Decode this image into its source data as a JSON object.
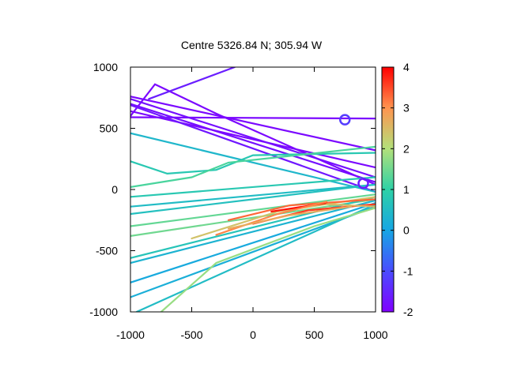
{
  "chart_data": {
    "type": "scatter",
    "title": "Centre 5326.84 N; 305.94  W",
    "xlabel": "",
    "ylabel": "",
    "xlim": [
      -1000,
      1000
    ],
    "ylim": [
      -1000,
      1000
    ],
    "x_ticks": [
      "-1000",
      "-500",
      "0",
      "500",
      "1000"
    ],
    "y_ticks": [
      "1000",
      "500",
      "0",
      "-500",
      "-1000"
    ],
    "colorbar": {
      "range": [
        -2,
        4
      ],
      "ticks": [
        "4",
        "3",
        "2",
        "1",
        "0",
        "-1",
        "-2"
      ],
      "colormap": "rainbow"
    },
    "grid": false,
    "tracks": [
      {
        "x": [
          -1000,
          1000
        ],
        "y": [
          590,
          580
        ],
        "value": -1.9
      },
      {
        "x": [
          -1000,
          1000
        ],
        "y": [
          760,
          320
        ],
        "value": -1.9
      },
      {
        "x": [
          -1000,
          1000
        ],
        "y": [
          700,
          60
        ],
        "value": -1.8
      },
      {
        "x": [
          -1000,
          1000
        ],
        "y": [
          640,
          180
        ],
        "value": -1.9
      },
      {
        "x": [
          -1000,
          -800,
          -300,
          1000
        ],
        "y": [
          600,
          860,
          620,
          40
        ],
        "value": -1.9
      },
      {
        "x": [
          -1000,
          1000
        ],
        "y": [
          740,
          100
        ],
        "value": -1.8
      },
      {
        "x": [
          -1000,
          1000
        ],
        "y": [
          690,
          -20
        ],
        "value": -1.7
      },
      {
        "x": [
          -850,
          -150
        ],
        "y": [
          740,
          1000
        ],
        "value": -1.6
      },
      {
        "x": [
          -1000,
          1000
        ],
        "y": [
          460,
          -20
        ],
        "value": 0.4
      },
      {
        "x": [
          -1000,
          -700,
          -300,
          0,
          1000
        ],
        "y": [
          230,
          130,
          160,
          280,
          300
        ],
        "value": 0.8
      },
      {
        "x": [
          -1000,
          -500,
          -200,
          1000
        ],
        "y": [
          20,
          100,
          220,
          350
        ],
        "value": 1.2
      },
      {
        "x": [
          -1000,
          1000
        ],
        "y": [
          -60,
          100
        ],
        "value": 0.8
      },
      {
        "x": [
          -1000,
          1000
        ],
        "y": [
          -140,
          40
        ],
        "value": 0.5
      },
      {
        "x": [
          -1000,
          1000
        ],
        "y": [
          -200,
          40
        ],
        "value": 0.6
      },
      {
        "x": [
          -1000,
          1000
        ],
        "y": [
          -300,
          -40
        ],
        "value": 1.4
      },
      {
        "x": [
          -1000,
          1000
        ],
        "y": [
          -380,
          -80
        ],
        "value": 1.5
      },
      {
        "x": [
          -1000,
          1000
        ],
        "y": [
          -560,
          -60
        ],
        "value": 0.7
      },
      {
        "x": [
          -1000,
          1000
        ],
        "y": [
          -600,
          -90
        ],
        "value": 0.3
      },
      {
        "x": [
          -1000,
          1000
        ],
        "y": [
          -760,
          -110
        ],
        "value": 0.1
      },
      {
        "x": [
          -1000,
          1000
        ],
        "y": [
          -880,
          -140
        ],
        "value": 0.2
      },
      {
        "x": [
          -950,
          1000
        ],
        "y": [
          -1000,
          -120
        ],
        "value": 0.5
      },
      {
        "x": [
          -750,
          -300,
          500,
          1000
        ],
        "y": [
          -1000,
          -600,
          -300,
          -150
        ],
        "value": 1.8
      },
      {
        "x": [
          -500,
          200,
          1000
        ],
        "y": [
          -400,
          -180,
          -60
        ],
        "value": 2.4
      },
      {
        "x": [
          -200,
          300,
          1000
        ],
        "y": [
          -250,
          -130,
          -80
        ],
        "value": 3.3
      },
      {
        "x": [
          0,
          450,
          1000
        ],
        "y": [
          -280,
          -170,
          -120
        ],
        "value": 3.6
      },
      {
        "x": [
          150,
          600
        ],
        "y": [
          -180,
          -110
        ],
        "value": 3.9
      },
      {
        "x": [
          -300,
          200,
          600
        ],
        "y": [
          -370,
          -200,
          -100
        ],
        "value": 3.1
      },
      {
        "x": [
          -200,
          300,
          800
        ],
        "y": [
          -320,
          -210,
          -140
        ],
        "value": 2.7
      },
      {
        "x": [
          600,
          1000
        ],
        "y": [
          -120,
          -140
        ],
        "value": 2.5
      }
    ],
    "annotations": [
      {
        "label": "loop-near-750-570",
        "x": 750,
        "y": 570,
        "value": -1.2
      },
      {
        "label": "cluster-near-900-50",
        "x": 900,
        "y": 50,
        "value": -1.6
      }
    ]
  }
}
